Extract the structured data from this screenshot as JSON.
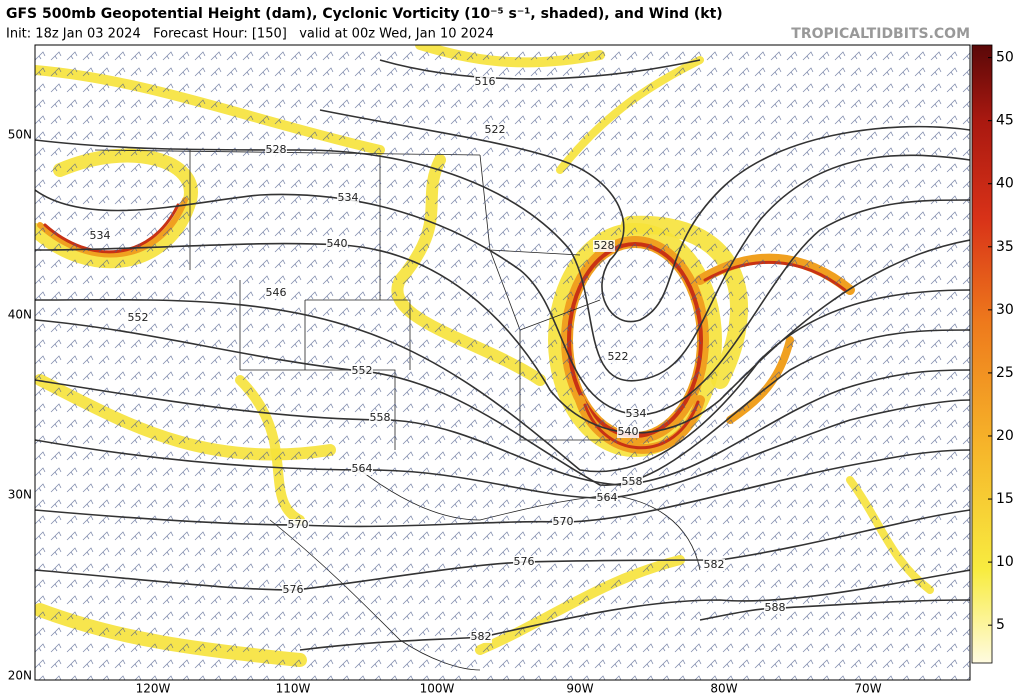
{
  "title": "GFS 500mb Geopotential Height (dam), Cyclonic Vorticity (10⁻⁵ s⁻¹, shaded), and Wind (kt)",
  "subtitle": "Init: 18z Jan 03 2024   Forecast Hour: [150]   valid at 00z Wed, Jan 10 2024",
  "watermark": "TROPICALTIDBITS.COM",
  "lat_labels": [
    "50N",
    "40N",
    "30N",
    "20N"
  ],
  "lon_labels": [
    "120W",
    "110W",
    "100W",
    "90W",
    "80W",
    "70W"
  ],
  "contour_labels": [
    516,
    522,
    528,
    534,
    534,
    540,
    546,
    552,
    552,
    528,
    522,
    558,
    534,
    540,
    564,
    558,
    564,
    570,
    570,
    576,
    582,
    576,
    588,
    582
  ],
  "colorbar": {
    "lim": [
      2,
      51
    ],
    "ticks": [
      5,
      10,
      15,
      20,
      25,
      30,
      35,
      40,
      45,
      50
    ]
  }
}
